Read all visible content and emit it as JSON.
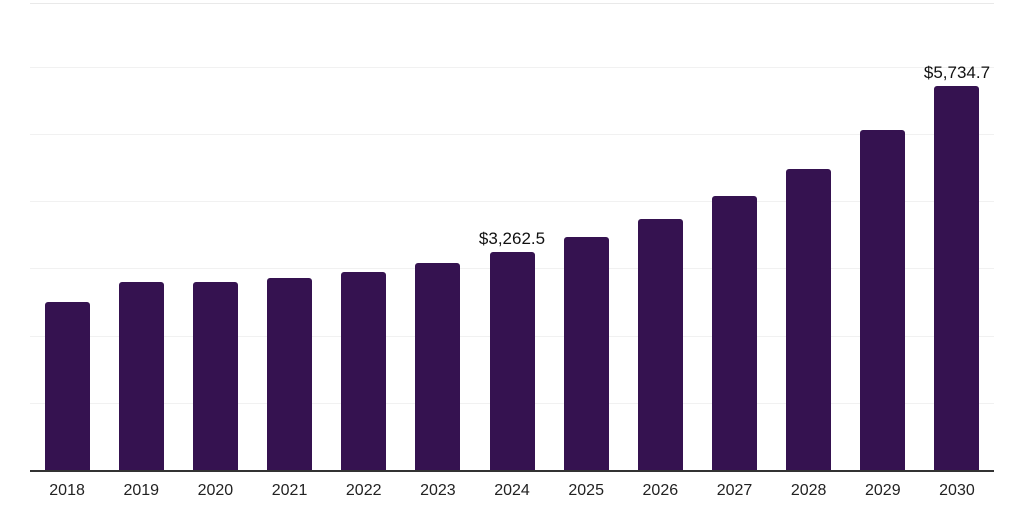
{
  "chart_data": {
    "type": "bar",
    "title": "",
    "xlabel": "",
    "ylabel": "",
    "categories": [
      "2018",
      "2019",
      "2020",
      "2021",
      "2022",
      "2023",
      "2024",
      "2025",
      "2026",
      "2027",
      "2028",
      "2029",
      "2030"
    ],
    "values": [
      2515,
      2820,
      2810,
      2870,
      2955,
      3090,
      3262.5,
      3490,
      3745,
      4100,
      4500,
      5080,
      5734.7
    ],
    "data_labels": [
      "",
      "",
      "",
      "",
      "",
      "",
      "$3,262.5",
      "",
      "",
      "",
      "",
      "",
      "$5,734.7"
    ],
    "ylim": [
      0,
      6950
    ],
    "gridline_interval": 1000,
    "grid": "horizontal",
    "y_tick_labels_visible": false,
    "legend": "none"
  },
  "colors": {
    "bar": "#351250",
    "axis": "#333333",
    "gridline": "#f1f1f1",
    "plot_top_border": "#e9e9e9",
    "data_label": "#111111",
    "x_tick_label": "#222222",
    "background": "#ffffff"
  }
}
